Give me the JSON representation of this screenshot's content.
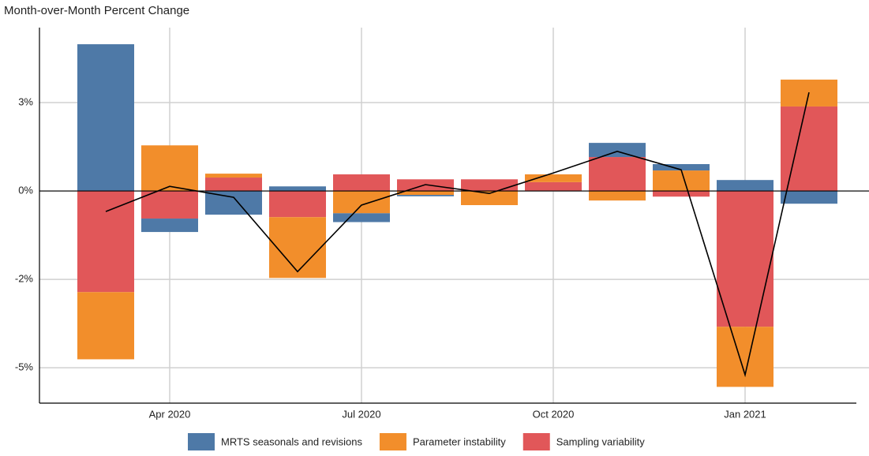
{
  "chart_data": {
    "type": "bar",
    "stacked": true,
    "title": "Month-over-Month Percent Change",
    "categories": [
      null,
      "Apr 2020",
      null,
      null,
      "Jul 2020",
      null,
      null,
      "Oct 2020",
      null,
      null,
      "Jan 2021",
      null
    ],
    "series": [
      {
        "name": "MRTS seasonals and revisions",
        "color": "#4e79a7",
        "values": [
          4.15,
          -0.38,
          -0.67,
          0.13,
          -0.25,
          -0.04,
          0,
          0,
          0.4,
          0.18,
          0.31,
          -0.36
        ]
      },
      {
        "name": "Parameter instability",
        "color": "#f28e2b",
        "values": [
          -1.9,
          1.29,
          0.11,
          -1.72,
          -0.63,
          -0.11,
          -0.4,
          0.22,
          -0.27,
          0.58,
          -1.7,
          0.76
        ]
      },
      {
        "name": "Sampling variability",
        "color": "#e15759",
        "values": [
          -2.86,
          -0.78,
          0.38,
          -0.74,
          0.47,
          0.33,
          0.33,
          0.25,
          0.96,
          -0.16,
          -3.84,
          2.39
        ]
      }
    ],
    "line": {
      "color": "#000000",
      "values": [
        -0.58,
        0.13,
        -0.18,
        -2.28,
        -0.4,
        0.18,
        -0.07,
        0.51,
        1.12,
        0.6,
        -5.2,
        2.79
      ]
    },
    "ylim": [
      -6.0,
      4.62
    ],
    "yticks": [
      {
        "value": -5,
        "label": "-5%"
      },
      {
        "value": -2.5,
        "label": "-2%"
      },
      {
        "value": 0,
        "label": "0%"
      },
      {
        "value": 2.5,
        "label": "3%"
      }
    ],
    "grid": true,
    "legend": "bottom"
  }
}
